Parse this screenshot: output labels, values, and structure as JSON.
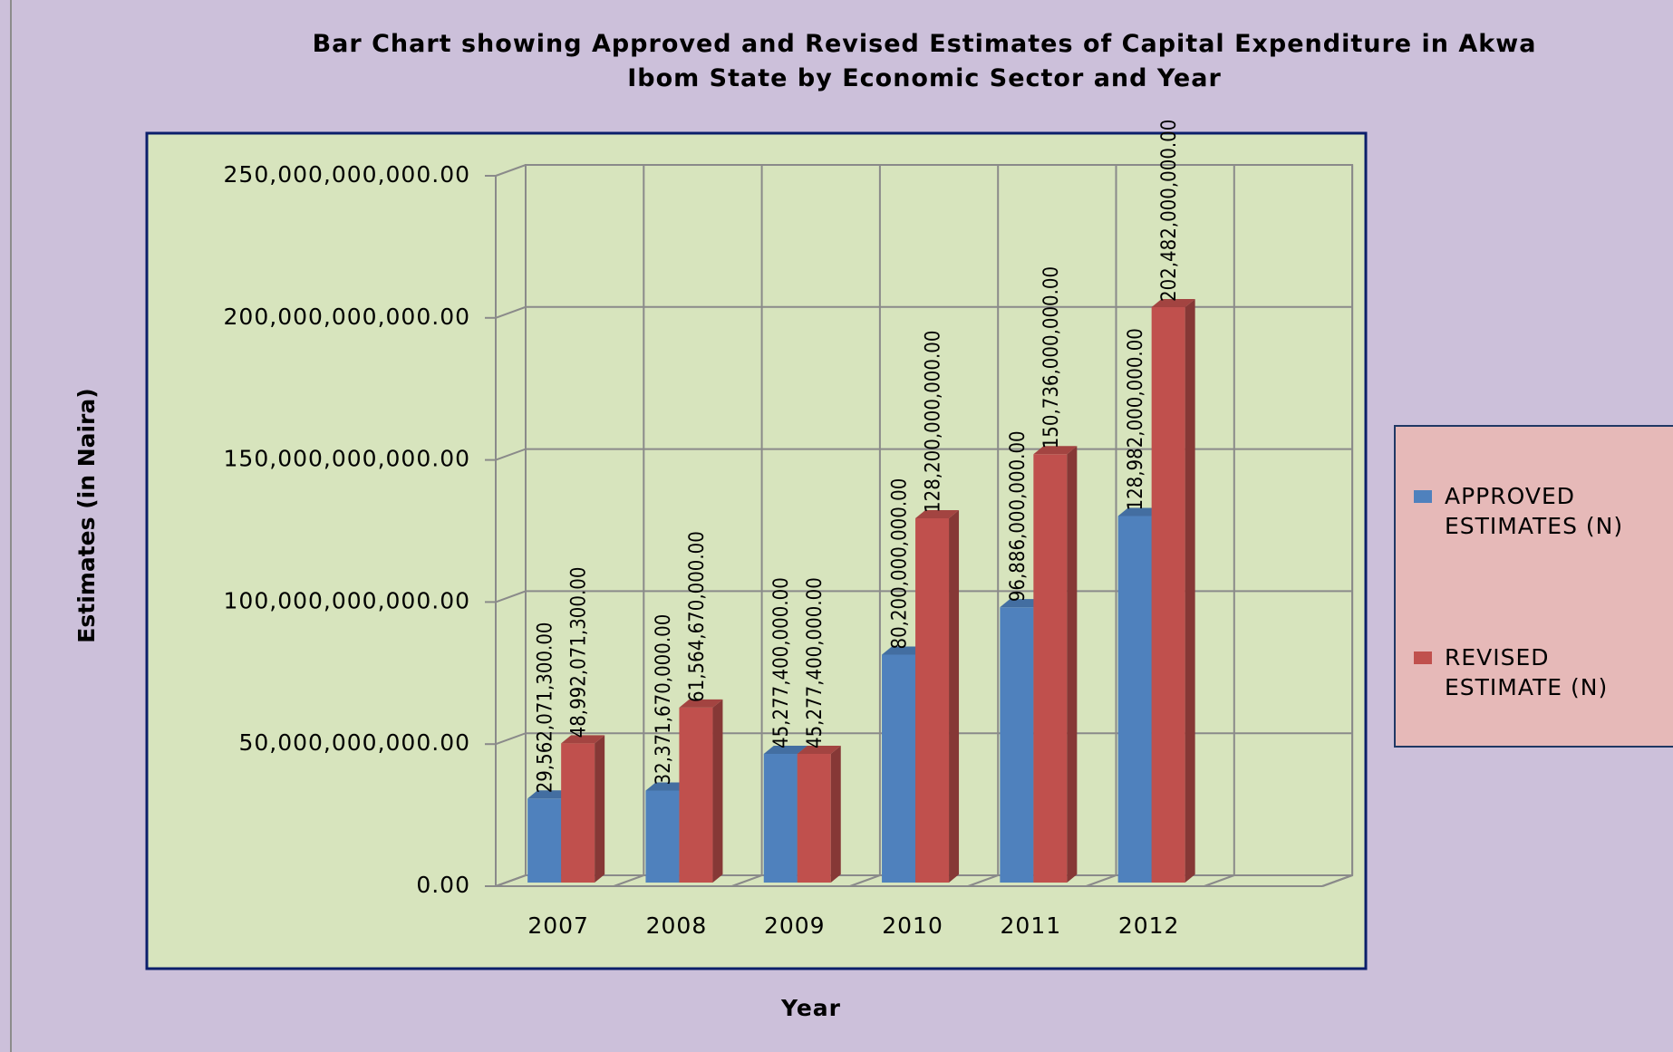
{
  "chart_data": {
    "type": "bar3d",
    "title": "Bar Chart showing Approved and Revised Estimates of Capital Expenditure in Akwa Ibom State by Economic Sector and Year",
    "x_label": "Year",
    "y_label": "Estimates (in Naira)",
    "categories": [
      "2007",
      "2008",
      "2009",
      "2010",
      "2011",
      "2012"
    ],
    "series": [
      {
        "name": "APPROVED ESTIMATES (N)",
        "color": "#4f81bd",
        "values": [
          29562071300,
          32371670000,
          45277400000,
          80200000000,
          96886000000,
          128982000000
        ],
        "value_labels": [
          "29,562,071,300.00",
          "32,371,670,000.00",
          "45,277,400,000.00",
          "80,200,000,000.00",
          "96,886,000,000.00",
          "128,982,000,000.00"
        ]
      },
      {
        "name": "REVISED ESTIMATE (N)",
        "color": "#c0504d",
        "values": [
          48992071300,
          61564670000,
          45277400000,
          128200000000,
          150736000000,
          202482000000
        ],
        "value_labels": [
          "48,992,071,300.00",
          "61,564,670,000.00",
          "45,277,400,000.00",
          "128,200,000,000.00",
          "150,736,000,000.00",
          "202,482,000,000.00"
        ]
      }
    ],
    "ylim": [
      0,
      250000000000
    ],
    "yticks": [
      {
        "value": 0,
        "label": "0.00"
      },
      {
        "value": 50000000000,
        "label": "50,000,000,000.00"
      },
      {
        "value": 100000000000,
        "label": "100,000,000,000.00"
      },
      {
        "value": 150000000000,
        "label": "150,000,000,000.00"
      },
      {
        "value": 200000000000,
        "label": "200,000,000,000.00"
      },
      {
        "value": 250000000000,
        "label": "250,000,000,000.00"
      }
    ],
    "grid": true,
    "legend": "right"
  }
}
